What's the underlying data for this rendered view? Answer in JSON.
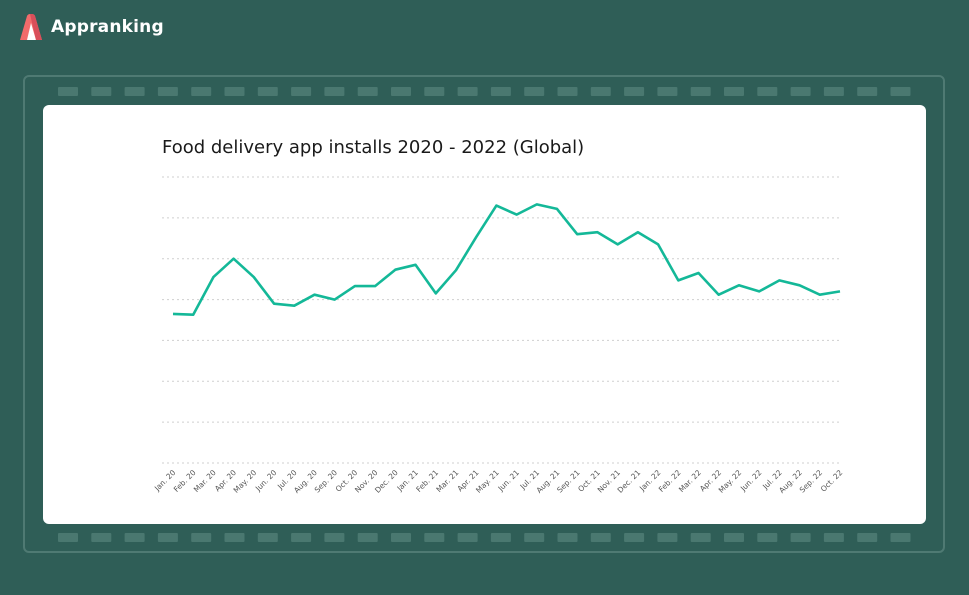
{
  "brand": {
    "name": "Appranking",
    "logo_icon": "appranking-logo-icon"
  },
  "colors": {
    "background": "#2f5e57",
    "line": "#14b898",
    "grid": "#cfcfcf",
    "card": "#ffffff"
  },
  "chart_data": {
    "type": "line",
    "title": "Food delivery app installs 2020 - 2022 (Global)",
    "xlabel": "",
    "ylabel": "",
    "grid": true,
    "legend": "none",
    "categories": [
      "Jan. 20",
      "Feb. 20",
      "Mar. 20",
      "Apr. 20",
      "May. 20",
      "Jun. 20",
      "Jul. 20",
      "Aug. 20",
      "Sep. 20",
      "Oct. 20",
      "Nov. 20",
      "Dec. 20",
      "Jan. 21",
      "Feb. 21",
      "Mar. 21",
      "Apr. 21",
      "May. 21",
      "Jun. 21",
      "Jul. 21",
      "Aug. 21",
      "Sep. 21",
      "Oct. 21",
      "Nov. 21",
      "Dec. 21",
      "Jan. 22",
      "Feb. 22",
      "Mar. 22",
      "Apr. 22",
      "May. 22",
      "Jun. 22",
      "Jul. 22",
      "Aug. 22",
      "Sep. 22",
      "Oct. 22"
    ],
    "values": [
      3.65,
      3.63,
      4.55,
      5.0,
      4.55,
      3.9,
      3.85,
      4.12,
      4.0,
      4.33,
      4.33,
      4.73,
      4.85,
      4.15,
      4.72,
      5.53,
      6.3,
      6.08,
      6.33,
      6.22,
      5.6,
      5.65,
      5.35,
      5.65,
      5.35,
      4.47,
      4.65,
      4.12,
      4.35,
      4.2,
      4.47,
      4.35,
      4.12,
      4.2
    ],
    "ylim": [
      0,
      7
    ]
  }
}
